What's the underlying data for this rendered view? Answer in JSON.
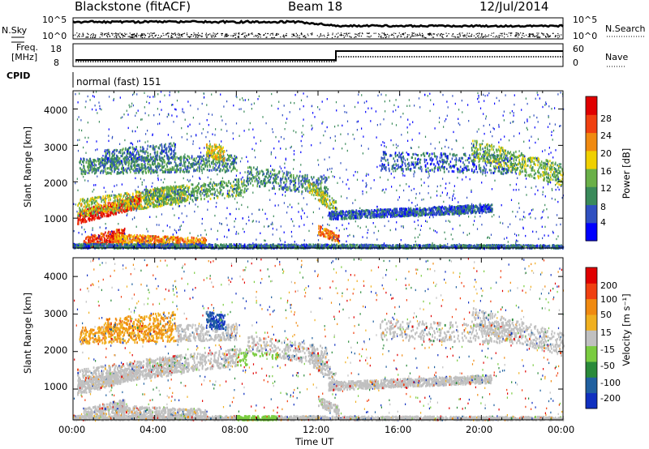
{
  "header": {
    "station": "Blackstone (fitACF)",
    "beam": "Beam 18",
    "date": "12/Jul/2014"
  },
  "top_panels": {
    "nsky": {
      "label": "N.Sky",
      "left_ticks": [
        "10^5",
        "10^0"
      ],
      "right_ticks": [
        "10^5",
        "10^0"
      ],
      "right_label": "N.Search"
    },
    "freq": {
      "label_line1": "Freq.",
      "label_line2": "[MHz]",
      "left_ticks": [
        "18",
        "8"
      ],
      "right_ticks": [
        "60",
        "0"
      ],
      "right_label": "Nave"
    },
    "cpid": {
      "label": "CPID",
      "value": "normal (fast) 151"
    }
  },
  "chart_data": [
    {
      "type": "heatmap",
      "name": "power",
      "xlabel": "Time UT",
      "ylabel": "Slant Range [km]",
      "x_ticks": [
        "00:00",
        "04:00",
        "08:00",
        "12:00",
        "16:00",
        "20:00",
        "00:00"
      ],
      "y_ticks": [
        "1000",
        "2000",
        "3000",
        "4000"
      ],
      "ylim": [
        180,
        4500
      ],
      "colorbar": {
        "label": "Power [dB]",
        "ticks": [
          "4",
          "8",
          "12",
          "16",
          "20",
          "24",
          "28"
        ],
        "colors": [
          "#0000ff",
          "#3050c0",
          "#3a8a5a",
          "#6ab048",
          "#f0d000",
          "#f08a10",
          "#f04010",
          "#e00000"
        ]
      }
    },
    {
      "type": "heatmap",
      "name": "velocity",
      "xlabel": "Time UT",
      "ylabel": "Slant Range [km]",
      "x_ticks": [
        "00:00",
        "04:00",
        "08:00",
        "12:00",
        "16:00",
        "20:00",
        "00:00"
      ],
      "y_ticks": [
        "1000",
        "2000",
        "3000",
        "4000"
      ],
      "ylim": [
        180,
        4500
      ],
      "colorbar": {
        "label": "Velocity [m s⁻¹]",
        "ticks": [
          "200",
          "100",
          "50",
          "15",
          "-15",
          "-50",
          "-100",
          "-200"
        ],
        "colors": [
          "#1030c0",
          "#2060a0",
          "#2a8a3a",
          "#7acc40",
          "#c0c0c0",
          "#f0b020",
          "#f08a10",
          "#f04010",
          "#e00000"
        ]
      }
    }
  ]
}
